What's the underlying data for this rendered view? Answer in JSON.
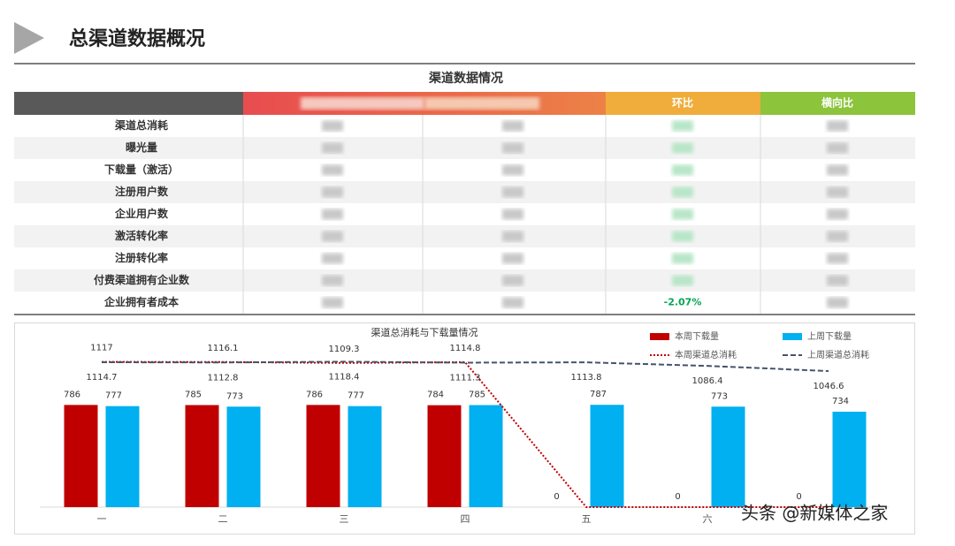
{
  "header": {
    "title": "总渠道数据概况"
  },
  "table": {
    "title": "渠道数据情况",
    "columns": {
      "ratio": "环比",
      "cross": "横向比"
    },
    "rows": [
      {
        "label": "渠道总消耗"
      },
      {
        "label": "曝光量"
      },
      {
        "label": "下载量（激活）"
      },
      {
        "label": "注册用户数"
      },
      {
        "label": "企业用户数"
      },
      {
        "label": "激活转化率"
      },
      {
        "label": "注册转化率"
      },
      {
        "label": "付费渠道拥有企业数"
      },
      {
        "label": "企业拥有者成本",
        "ratio": "-2.07%"
      }
    ]
  },
  "chart_data": {
    "type": "bar",
    "title": "渠道总消耗与下载量情况",
    "categories": [
      "一",
      "二",
      "三",
      "四",
      "五",
      "六",
      null
    ],
    "ylim": [
      0,
      1400
    ],
    "series": [
      {
        "name": "本周下载量",
        "color": "#c00000",
        "kind": "bar",
        "values": [
          786,
          785,
          786,
          784,
          0,
          0,
          0
        ]
      },
      {
        "name": "上周下载量",
        "color": "#00b0f0",
        "kind": "bar",
        "values": [
          777,
          773,
          777,
          785,
          787,
          773,
          734
        ]
      },
      {
        "name": "本周渠道总消耗",
        "color": "#c00000",
        "kind": "line",
        "dash": "dotted",
        "values": [
          1117,
          1116.1,
          1109.3,
          1114.8,
          0,
          0,
          0
        ]
      },
      {
        "name": "上周渠道总消耗",
        "color": "#44546a",
        "kind": "line",
        "dash": "dashed",
        "values": [
          1114.7,
          1112.8,
          1118.4,
          1111.3,
          1113.8,
          1086.4,
          1046.6
        ]
      }
    ]
  },
  "watermark": "头条 @新媒体之家"
}
